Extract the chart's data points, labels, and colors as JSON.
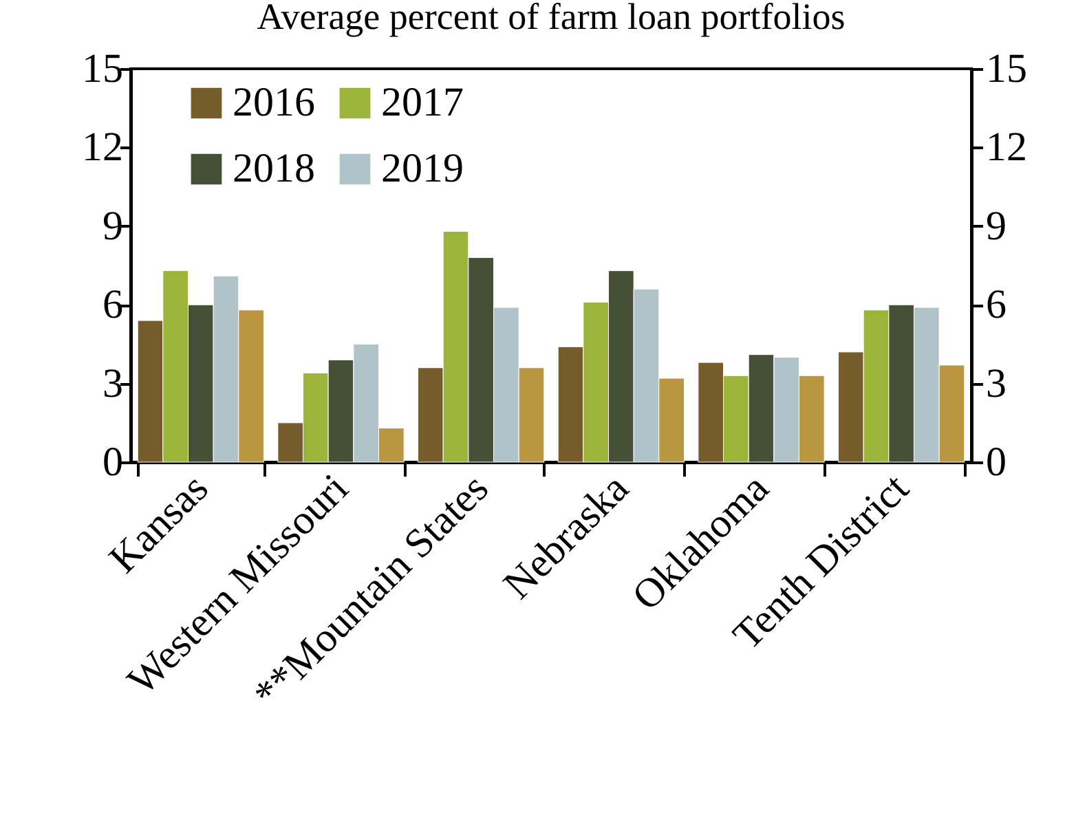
{
  "chart_data": {
    "type": "bar",
    "title": "Average percent of farm loan portfolios",
    "categories": [
      "Kansas",
      "Western Missouri",
      "**Mountain States",
      "Nebraska",
      "Oklahoma",
      "Tenth District"
    ],
    "series": [
      {
        "name": "2016",
        "color": "#755c2a",
        "values": [
          5.4,
          1.5,
          3.6,
          4.4,
          3.8,
          4.2
        ]
      },
      {
        "name": "2017",
        "color": "#9db43a",
        "values": [
          7.3,
          3.4,
          8.8,
          6.1,
          3.3,
          5.8
        ]
      },
      {
        "name": "2018",
        "color": "#465037",
        "values": [
          6.0,
          3.9,
          7.8,
          7.3,
          4.1,
          6.0
        ]
      },
      {
        "name": "2019",
        "color": "#b0c3c8",
        "values": [
          7.1,
          4.5,
          5.9,
          6.6,
          4.0,
          5.9
        ]
      },
      {
        "color": "#b9963f",
        "values": [
          5.8,
          1.3,
          3.6,
          3.2,
          3.3,
          3.7
        ]
      }
    ],
    "ylim": [
      0,
      15
    ],
    "yticks": [
      0,
      3,
      6,
      9,
      12,
      15
    ],
    "y2lim": [
      0,
      15
    ],
    "y2ticks": [
      0,
      3,
      6,
      9,
      12,
      15
    ],
    "legend": "top left"
  }
}
